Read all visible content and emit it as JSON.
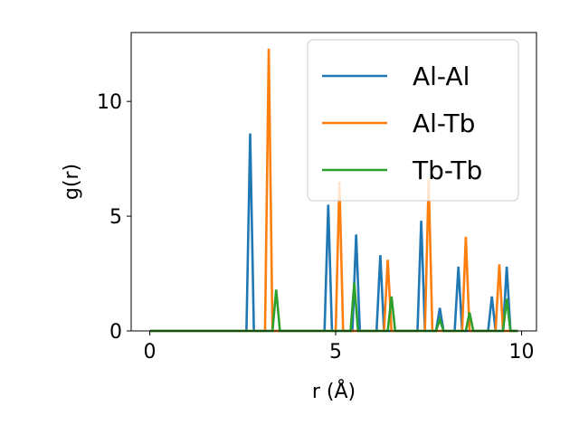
{
  "chart_data": {
    "type": "line",
    "title": "",
    "xlabel": "r (Å)",
    "ylabel": "g(r)",
    "xlim": [
      -0.5,
      10.4
    ],
    "ylim": [
      0,
      13.0
    ],
    "xticks": [
      0,
      5,
      10
    ],
    "yticks": [
      0,
      5,
      10
    ],
    "grid": false,
    "legend_position": "top-right",
    "peak_halfwidth": 0.1,
    "series": [
      {
        "name": "Al-Al",
        "color": "#1f77b4",
        "peaks": [
          [
            2.7,
            8.6
          ],
          [
            4.8,
            5.5
          ],
          [
            5.55,
            4.2
          ],
          [
            6.2,
            3.3
          ],
          [
            7.3,
            4.8
          ],
          [
            7.8,
            1.0
          ],
          [
            8.3,
            2.8
          ],
          [
            9.2,
            1.5
          ],
          [
            9.6,
            2.8
          ]
        ]
      },
      {
        "name": "Al-Tb",
        "color": "#ff7f0e",
        "peaks": [
          [
            3.2,
            12.3
          ],
          [
            5.1,
            6.5
          ],
          [
            6.4,
            3.1
          ],
          [
            7.5,
            6.6
          ],
          [
            8.5,
            4.1
          ],
          [
            9.4,
            2.9
          ]
        ]
      },
      {
        "name": "Tb-Tb",
        "color": "#2ca02c",
        "peaks": [
          [
            3.4,
            1.8
          ],
          [
            5.5,
            2.1
          ],
          [
            6.5,
            1.5
          ],
          [
            7.8,
            0.5
          ],
          [
            8.6,
            0.8
          ],
          [
            9.6,
            1.4
          ]
        ]
      }
    ]
  }
}
